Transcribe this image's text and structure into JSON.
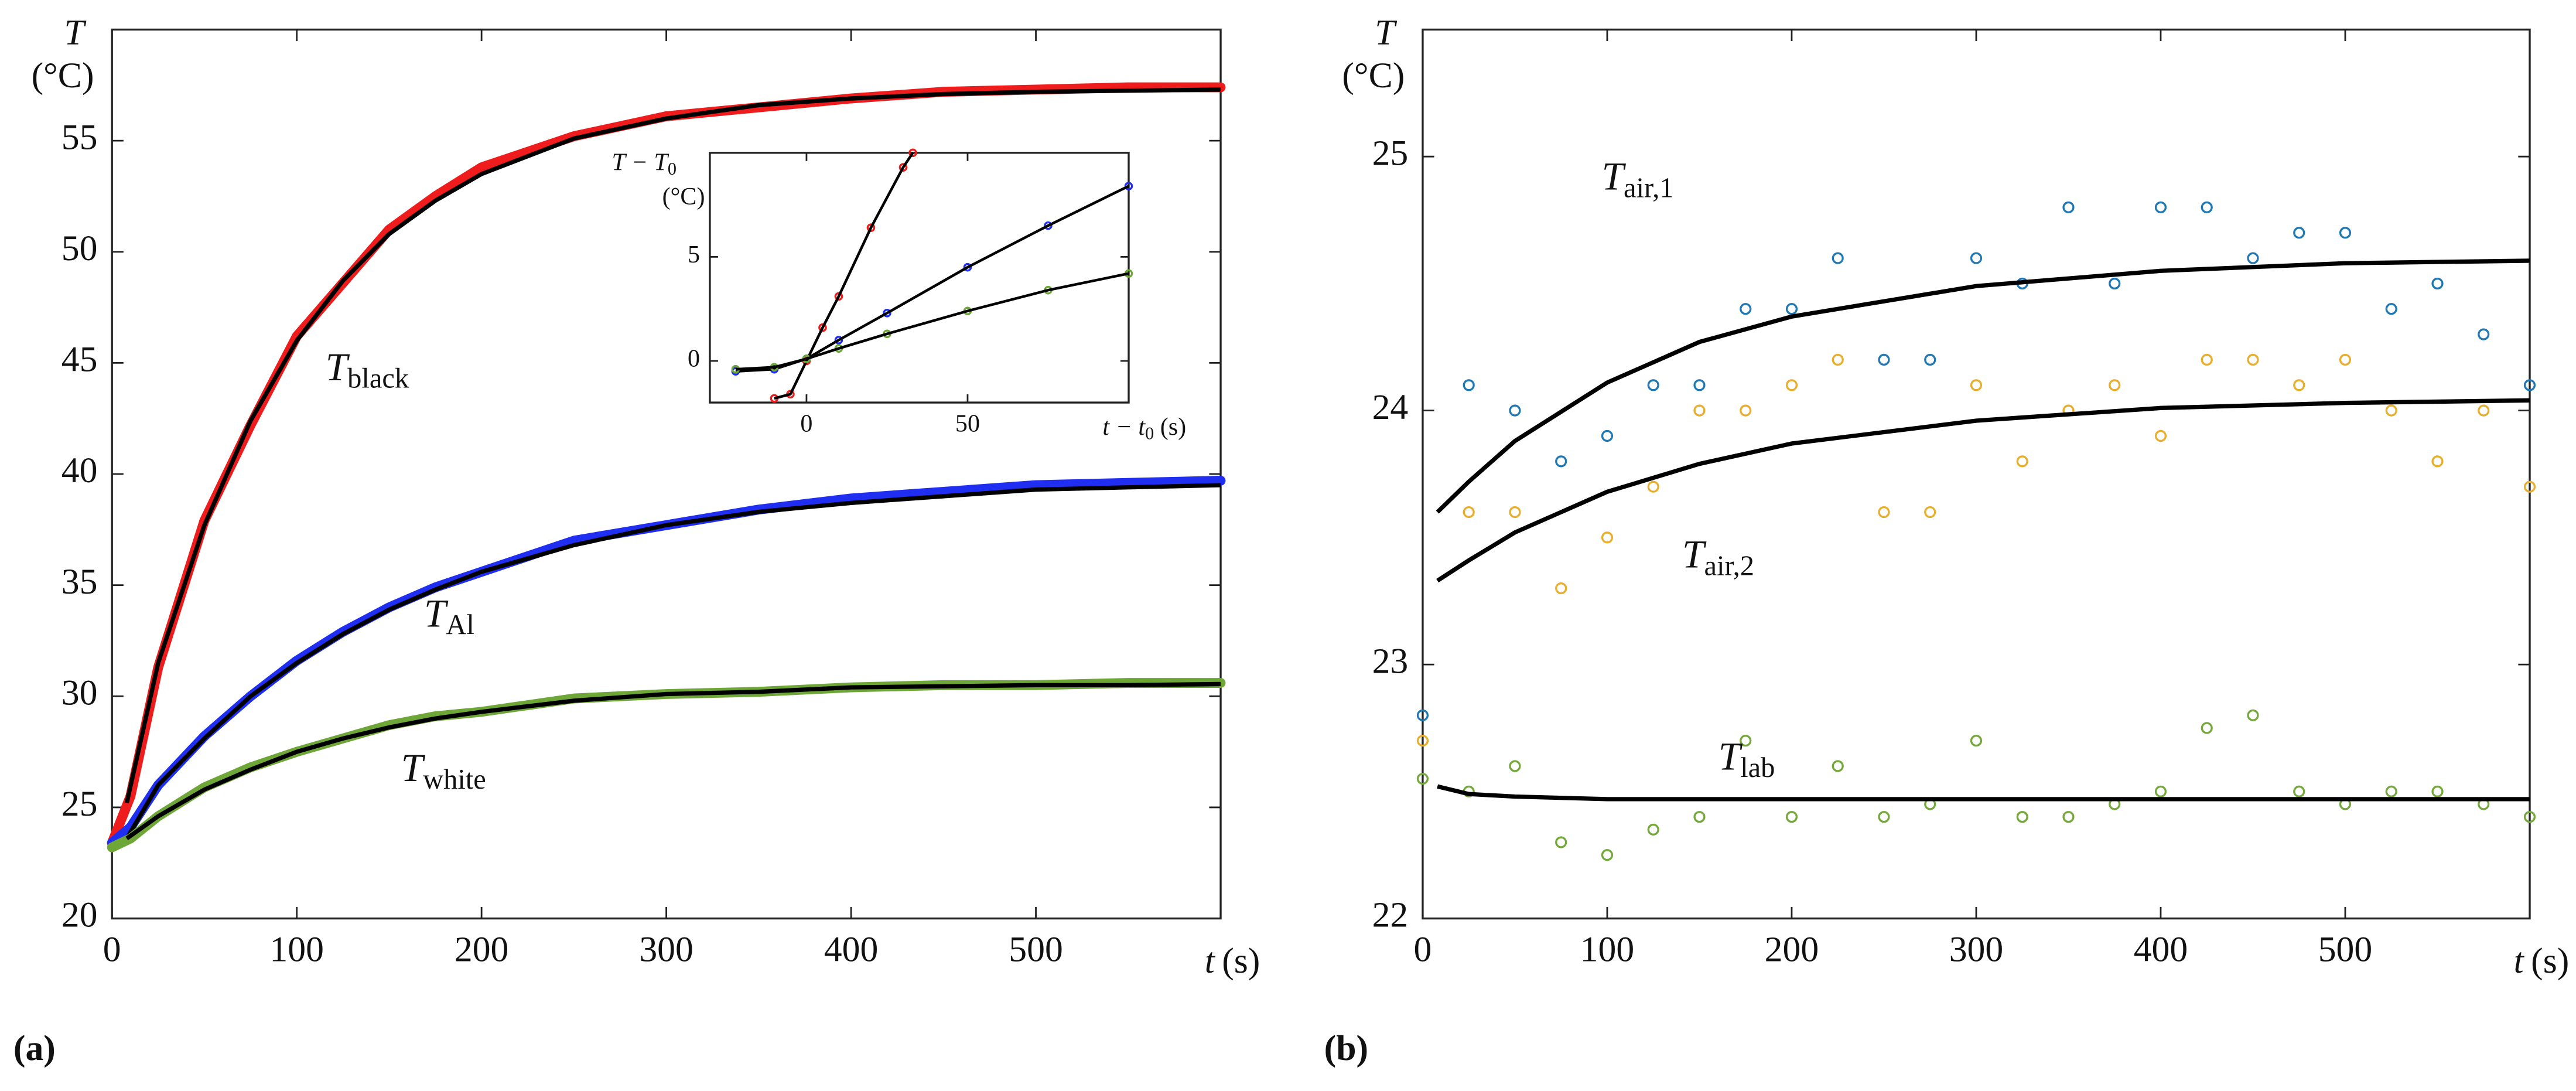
{
  "chart_data": [
    {
      "type": "line",
      "panel": "(a)",
      "y_label": {
        "symbol": "T",
        "unit": "(°C)"
      },
      "x_label": {
        "symbol": "t",
        "unit": "(s)"
      },
      "xlim": [
        0,
        600
      ],
      "xticks": [
        0,
        100,
        200,
        300,
        400,
        500
      ],
      "ylim": [
        20,
        60
      ],
      "yticks": [
        20,
        25,
        30,
        35,
        40,
        45,
        50,
        55
      ],
      "x": [
        0,
        10,
        25,
        50,
        75,
        100,
        125,
        150,
        175,
        200,
        250,
        300,
        350,
        400,
        450,
        500,
        550,
        600
      ],
      "fit_x": [
        8,
        25,
        50,
        75,
        100,
        125,
        150,
        175,
        200,
        250,
        300,
        350,
        400,
        450,
        500,
        550,
        600
      ],
      "series": [
        {
          "label": {
            "main": "T",
            "sub": "black"
          },
          "color": "#ee1c1c",
          "values": [
            23.4,
            25.5,
            31.3,
            37.9,
            42.2,
            46.2,
            48.6,
            51.0,
            52.5,
            53.8,
            55.2,
            56.1,
            56.5,
            56.9,
            57.2,
            57.3,
            57.4,
            57.4
          ],
          "fit_values": [
            25.2,
            31.5,
            37.7,
            42.4,
            46.0,
            48.7,
            50.8,
            52.3,
            53.5,
            55.1,
            56.0,
            56.6,
            56.9,
            57.1,
            57.2,
            57.25,
            57.3
          ]
        },
        {
          "label": {
            "main": "T",
            "sub": "Al"
          },
          "color": "#1f2ef0",
          "values": [
            23.4,
            24.1,
            26.0,
            28.2,
            30.0,
            31.6,
            32.9,
            34.0,
            34.9,
            35.6,
            37.0,
            37.7,
            38.4,
            38.9,
            39.2,
            39.5,
            39.6,
            39.7
          ],
          "fit_values": [
            23.6,
            26.0,
            28.1,
            30.0,
            31.5,
            32.8,
            33.9,
            34.8,
            35.6,
            36.8,
            37.7,
            38.3,
            38.7,
            39.0,
            39.3,
            39.4,
            39.5
          ]
        },
        {
          "label": {
            "main": "T",
            "sub": "white"
          },
          "color": "#6fa638",
          "values": [
            23.2,
            23.6,
            24.6,
            25.9,
            26.8,
            27.5,
            28.1,
            28.7,
            29.1,
            29.3,
            29.9,
            30.1,
            30.2,
            30.4,
            30.5,
            30.5,
            30.6,
            30.6
          ],
          "fit_values": [
            23.6,
            24.6,
            25.8,
            26.7,
            27.5,
            28.1,
            28.6,
            29.0,
            29.3,
            29.8,
            30.1,
            30.2,
            30.4,
            30.45,
            30.5,
            30.5,
            30.55
          ]
        }
      ]
    },
    {
      "type": "scatter",
      "y_label": {
        "symbol": "T − T",
        "sub": "0",
        "unit": "(°C)"
      },
      "x_label": {
        "symbol": "t − t",
        "sub": "0",
        "unit": " (s)"
      },
      "xlim": [
        -30,
        100
      ],
      "xticks": [
        0,
        50
      ],
      "ylim": [
        -2,
        10
      ],
      "yticks": [
        0,
        5
      ],
      "series": [
        {
          "color": "#ee1c1c",
          "x": [
            -10,
            -5,
            0,
            5,
            10,
            20,
            30,
            33
          ],
          "values": [
            -1.8,
            -1.6,
            0,
            1.6,
            3.1,
            6.4,
            9.3,
            10
          ]
        },
        {
          "color": "#1f2ef0",
          "x": [
            -22,
            -10,
            0,
            10,
            25,
            50,
            75,
            100
          ],
          "values": [
            -0.5,
            -0.4,
            0.1,
            1,
            2.3,
            4.5,
            6.5,
            8.4
          ]
        },
        {
          "color": "#6fa638",
          "x": [
            -22,
            -10,
            0,
            10,
            25,
            50,
            75,
            100
          ],
          "values": [
            -0.4,
            -0.3,
            0.1,
            0.6,
            1.3,
            2.4,
            3.4,
            4.2
          ]
        }
      ]
    },
    {
      "type": "scatter",
      "panel": "(b)",
      "y_label": {
        "symbol": "T",
        "unit": "(°C)"
      },
      "x_label": {
        "symbol": "t",
        "unit": "(s)"
      },
      "xlim": [
        0,
        600
      ],
      "xticks": [
        0,
        100,
        200,
        300,
        400,
        500
      ],
      "ylim": [
        22,
        25.5
      ],
      "yticks": [
        22,
        23,
        24,
        25
      ],
      "x": [
        0,
        25,
        50,
        75,
        100,
        125,
        150,
        175,
        200,
        225,
        250,
        275,
        300,
        325,
        350,
        375,
        400,
        425,
        450,
        475,
        500,
        525,
        550,
        575,
        600
      ],
      "fit_x": [
        8,
        25,
        50,
        100,
        150,
        200,
        300,
        400,
        500,
        600
      ],
      "series": [
        {
          "label": {
            "main": "T",
            "sub": "air,1"
          },
          "color": "#1f78b4",
          "values": [
            22.8,
            24.1,
            24.0,
            23.8,
            23.9,
            24.1,
            24.1,
            24.4,
            24.4,
            24.6,
            24.2,
            24.2,
            24.6,
            24.5,
            24.8,
            24.5,
            24.8,
            24.8,
            24.6,
            24.7,
            24.7,
            24.4,
            24.5,
            24.3,
            24.1
          ],
          "fit_values": [
            23.6,
            23.72,
            23.88,
            24.11,
            24.27,
            24.37,
            24.49,
            24.55,
            24.58,
            24.59
          ]
        },
        {
          "label": {
            "main": "T",
            "sub": "air,2"
          },
          "color": "#e8ae2c",
          "values": [
            22.7,
            23.6,
            23.6,
            23.3,
            23.5,
            23.7,
            24.0,
            24.0,
            24.1,
            24.2,
            23.6,
            23.6,
            24.1,
            23.8,
            24.0,
            24.1,
            23.9,
            24.2,
            24.2,
            24.1,
            24.2,
            24.0,
            23.8,
            24.0,
            23.7
          ],
          "fit_values": [
            23.33,
            23.41,
            23.52,
            23.68,
            23.79,
            23.87,
            23.96,
            24.01,
            24.03,
            24.04
          ]
        },
        {
          "label": {
            "main": "T",
            "sub": "lab"
          },
          "color": "#74a83a",
          "values": [
            22.55,
            22.5,
            22.6,
            22.3,
            22.25,
            22.35,
            22.4,
            22.7,
            22.4,
            22.6,
            22.4,
            22.45,
            22.7,
            22.4,
            22.4,
            22.45,
            22.5,
            22.75,
            22.8,
            22.5,
            22.45,
            22.5,
            22.5,
            22.45,
            22.4
          ],
          "fit_values": [
            22.52,
            22.49,
            22.48,
            22.47,
            22.47,
            22.47,
            22.47,
            22.47,
            22.47,
            22.47
          ]
        }
      ]
    }
  ]
}
